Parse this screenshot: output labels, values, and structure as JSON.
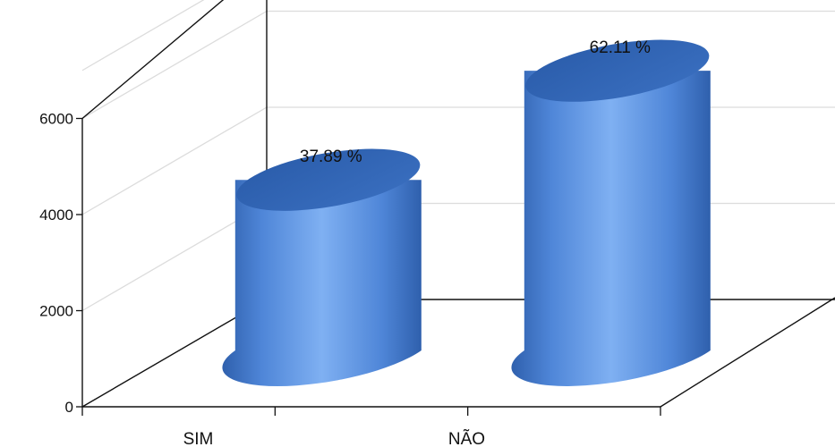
{
  "chart_data": {
    "type": "bar",
    "style": "3d-cylinder",
    "categories": [
      "SIM",
      "NÃO"
    ],
    "values": [
      3550,
      5820
    ],
    "data_labels": [
      "37.89 %",
      "62.11 %"
    ],
    "y_ticks": [
      "0",
      "2000",
      "4000",
      "6000"
    ],
    "ylim": [
      0,
      6000
    ],
    "grid": true,
    "legend": "none",
    "bar_color": "#4f86d8"
  }
}
